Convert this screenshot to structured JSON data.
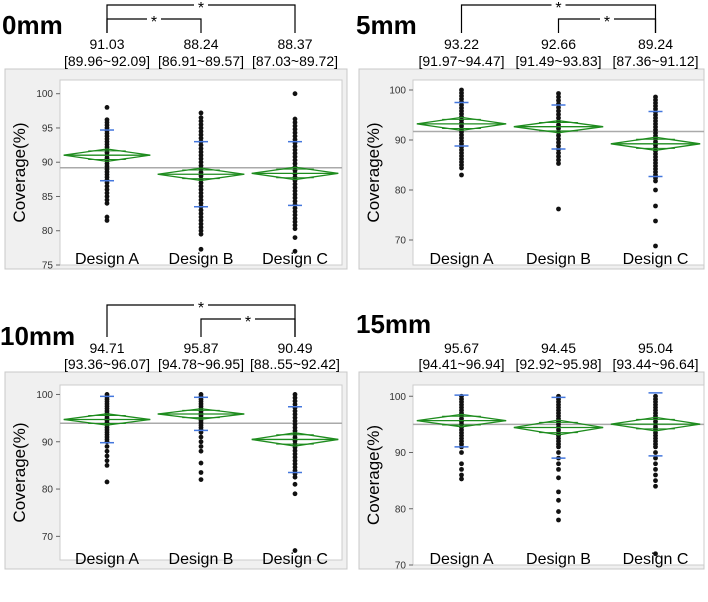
{
  "colors": {
    "panel_bg": "#f0f0f0",
    "diamond": "#1e8c1e",
    "grand_mean_line": "#aaaaaa",
    "point": "#111111",
    "sd_tick": "#4477dd",
    "frame": "#c8c8c8"
  },
  "chart_data": [
    {
      "type": "scatter",
      "title": "0mm",
      "ylabel": "Coverage(%)",
      "ylim": [
        75,
        102
      ],
      "yticks": [
        75,
        80,
        85,
        90,
        95,
        100
      ],
      "categories": [
        "Design A",
        "Design B",
        "Design C"
      ],
      "grand_mean": 89.2,
      "means": [
        91.03,
        88.24,
        88.37
      ],
      "diamond_half_height": [
        0.9,
        0.9,
        0.9
      ],
      "sd_ticks": [
        [
          87.3,
          94.7
        ],
        [
          83.5,
          93.0
        ],
        [
          83.7,
          93.0
        ]
      ],
      "mean_labels": [
        "91.03",
        "88.24",
        "88.37"
      ],
      "ci_labels": [
        "[89.96~92.09]",
        "[86.91~89.57]",
        "[87.03~89.72]"
      ],
      "significance": [
        {
          "from": 0,
          "to": 1,
          "label": "*"
        },
        {
          "from": 0,
          "to": 2,
          "label": "*"
        }
      ],
      "points": [
        [
          98.0,
          96.2,
          95.8,
          95.4,
          95.0,
          94.6,
          94.2,
          93.8,
          93.4,
          93.0,
          92.6,
          92.2,
          91.8,
          91.4,
          91.0,
          90.6,
          90.2,
          89.8,
          89.4,
          89.0,
          88.6,
          88.2,
          87.8,
          87.4,
          87.0,
          86.5,
          86.0,
          85.5,
          85.0,
          84.5,
          84.0,
          82.0,
          81.5
        ],
        [
          97.2,
          96.5,
          96.0,
          95.5,
          95.0,
          94.5,
          94.0,
          93.5,
          93.0,
          92.5,
          92.0,
          91.5,
          91.0,
          90.5,
          90.0,
          89.5,
          89.0,
          88.5,
          88.0,
          87.5,
          87.0,
          86.5,
          86.0,
          85.5,
          85.0,
          84.5,
          84.0,
          83.5,
          83.0,
          82.5,
          82.0,
          81.5,
          81.0,
          80.5,
          80.0,
          79.5,
          77.3
        ],
        [
          100.0,
          96.3,
          95.8,
          95.3,
          94.8,
          94.3,
          93.8,
          93.3,
          92.8,
          92.3,
          91.8,
          91.3,
          90.8,
          90.3,
          89.8,
          89.3,
          88.8,
          88.3,
          87.8,
          87.3,
          86.8,
          86.3,
          85.8,
          85.3,
          84.8,
          84.3,
          83.8,
          83.3,
          82.8,
          82.3,
          81.8,
          81.3,
          80.8,
          80.3,
          79.0,
          77.0
        ]
      ]
    },
    {
      "type": "scatter",
      "title": "5mm",
      "ylabel": "Coverage(%)",
      "ylim": [
        65,
        102
      ],
      "yticks": [
        70,
        80,
        90,
        100
      ],
      "categories": [
        "Design A",
        "Design B",
        "Design C"
      ],
      "grand_mean": 91.7,
      "means": [
        93.22,
        92.66,
        89.24
      ],
      "diamond_half_height": [
        1.3,
        1.2,
        1.3
      ],
      "sd_ticks": [
        [
          88.8,
          97.5
        ],
        [
          88.2,
          97.0
        ],
        [
          82.7,
          95.7
        ]
      ],
      "mean_labels": [
        "93.22",
        "92.66",
        "89.24"
      ],
      "ci_labels": [
        "[91.97~94.47]",
        "[91.49~93.83]",
        "[87.36~91.12]"
      ],
      "significance": [
        {
          "from": 0,
          "to": 2,
          "label": "*"
        },
        {
          "from": 1,
          "to": 2,
          "label": "*"
        }
      ],
      "points": [
        [
          100.0,
          99.4,
          98.8,
          98.2,
          97.6,
          97.0,
          96.4,
          95.8,
          95.2,
          94.6,
          94.0,
          93.4,
          92.8,
          92.2,
          91.6,
          91.0,
          90.4,
          89.8,
          89.2,
          88.6,
          88.0,
          87.4,
          86.8,
          86.2,
          85.6,
          85.0,
          84.4,
          83.0
        ],
        [
          99.3,
          98.6,
          97.9,
          97.2,
          96.5,
          95.8,
          95.1,
          94.4,
          93.7,
          93.0,
          92.3,
          91.6,
          90.9,
          90.2,
          89.5,
          88.8,
          88.1,
          87.4,
          86.7,
          86.0,
          85.3,
          76.2
        ],
        [
          98.6,
          98.0,
          97.4,
          96.8,
          96.2,
          95.6,
          95.0,
          94.4,
          93.8,
          93.2,
          92.6,
          92.0,
          91.4,
          90.8,
          90.2,
          89.6,
          89.0,
          88.4,
          87.8,
          87.2,
          86.6,
          86.0,
          85.4,
          84.8,
          84.2,
          83.6,
          83.0,
          82.4,
          81.8,
          80.0,
          76.8,
          73.8,
          68.8
        ]
      ]
    },
    {
      "type": "scatter",
      "title": "10mm",
      "ylabel": "Coverage(%)",
      "ylim": [
        65,
        102
      ],
      "yticks": [
        70,
        80,
        90,
        100
      ],
      "categories": [
        "Design A",
        "Design B",
        "Design C"
      ],
      "grand_mean": 93.9,
      "means": [
        94.71,
        95.87,
        90.49
      ],
      "diamond_half_height": [
        1.2,
        1.1,
        1.4
      ],
      "sd_ticks": [
        [
          89.8,
          99.6
        ],
        [
          92.4,
          99.4
        ],
        [
          83.5,
          97.4
        ]
      ],
      "mean_labels": [
        "94.71",
        "95.87",
        "90.49"
      ],
      "ci_labels": [
        "[93.36~96.07]",
        "[94.78~96.95]",
        "[88..55~92.42]"
      ],
      "significance": [
        {
          "from": 0,
          "to": 2,
          "label": "*"
        },
        {
          "from": 1,
          "to": 2,
          "label": "*"
        }
      ],
      "points": [
        [
          100.0,
          99.5,
          99.0,
          98.5,
          98.0,
          97.5,
          97.0,
          96.5,
          96.0,
          95.5,
          95.0,
          94.5,
          94.0,
          93.5,
          93.0,
          92.5,
          92.0,
          91.5,
          91.0,
          90.5,
          90.0,
          89.0,
          88.0,
          87.0,
          86.0,
          85.0,
          81.5
        ],
        [
          100.0,
          99.5,
          99.0,
          98.5,
          98.0,
          97.5,
          97.0,
          96.5,
          96.0,
          95.5,
          95.0,
          94.5,
          94.0,
          93.5,
          93.0,
          92.5,
          92.0,
          91.0,
          90.0,
          89.0,
          88.0,
          85.5,
          83.5,
          82.0
        ],
        [
          100.0,
          99.3,
          98.6,
          97.9,
          97.2,
          96.5,
          95.8,
          95.1,
          94.4,
          93.7,
          93.0,
          92.3,
          91.6,
          90.9,
          90.2,
          89.5,
          88.8,
          88.1,
          87.4,
          86.7,
          86.0,
          85.3,
          84.6,
          83.9,
          83.2,
          82.5,
          81.0,
          79.0,
          67.0
        ]
      ]
    },
    {
      "type": "scatter",
      "title": "15mm",
      "ylabel": "Coverage(%)",
      "ylim": [
        70,
        102
      ],
      "yticks": [
        70,
        80,
        90,
        100
      ],
      "categories": [
        "Design A",
        "Design B",
        "Design C"
      ],
      "grand_mean": 95.0,
      "means": [
        95.67,
        94.45,
        95.04
      ],
      "diamond_half_height": [
        1.1,
        1.3,
        1.2
      ],
      "sd_ticks": [
        [
          91.0,
          100.2
        ],
        [
          89.0,
          99.8
        ],
        [
          89.4,
          100.6
        ]
      ],
      "mean_labels": [
        "95.67",
        "94.45",
        "95.04"
      ],
      "ci_labels": [
        "[94.41~96.94]",
        "[92.92~95.98]",
        "[93.44~96.64]"
      ],
      "significance": [],
      "points": [
        [
          100.0,
          99.5,
          99.0,
          98.5,
          98.0,
          97.5,
          97.0,
          96.5,
          96.0,
          95.5,
          95.0,
          94.5,
          94.0,
          93.5,
          93.0,
          92.5,
          92.0,
          91.5,
          91.0,
          90.0,
          88.0,
          87.0,
          86.0,
          85.3
        ],
        [
          100.0,
          99.5,
          99.0,
          98.5,
          98.0,
          97.5,
          97.0,
          96.5,
          96.0,
          95.5,
          95.0,
          94.5,
          94.0,
          93.5,
          93.0,
          92.5,
          92.0,
          91.5,
          91.0,
          90.0,
          89.0,
          88.0,
          87.0,
          85.5,
          83.0,
          81.5,
          79.5,
          78.0
        ],
        [
          100.0,
          99.5,
          99.0,
          98.5,
          98.0,
          97.5,
          97.0,
          96.5,
          96.0,
          95.5,
          95.0,
          94.5,
          94.0,
          93.5,
          93.0,
          92.5,
          92.0,
          91.5,
          91.0,
          90.0,
          89.0,
          88.0,
          87.0,
          86.0,
          85.0,
          84.0,
          72.0
        ]
      ]
    }
  ]
}
